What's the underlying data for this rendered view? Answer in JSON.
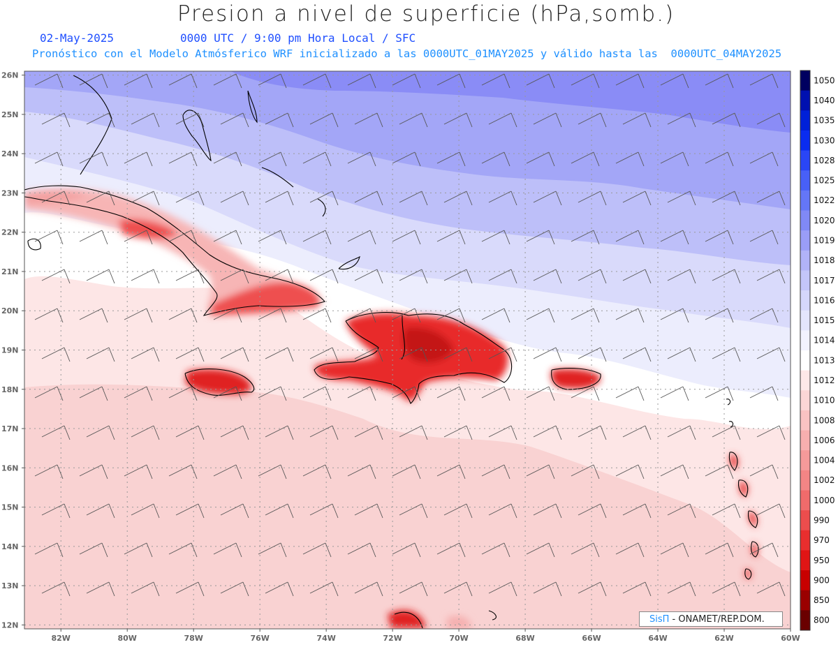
{
  "header": {
    "title": "Presion a nivel de superficie (hPa,somb.)",
    "date": "02-May-2025",
    "valid_time": "0000 UTC / 9:00 pm Hora Local / SFC",
    "forecast_info": "Pronóstico con el Modelo Atmósferico WRF inicializado a las 0000UTC_01MAY2025 y válido hasta las  0000UTC_04MAY2025"
  },
  "map": {
    "lat_labels": [
      "26N",
      "25N",
      "24N",
      "23N",
      "22N",
      "21N",
      "20N",
      "19N",
      "18N",
      "17N",
      "16N",
      "15N",
      "14N",
      "13N",
      "12N"
    ],
    "lon_labels": [
      "82W",
      "80W",
      "78W",
      "76W",
      "74W",
      "72W",
      "70W",
      "68W",
      "66W",
      "64W",
      "62W",
      "60W"
    ],
    "bands": [
      {
        "level": "1018",
        "color": "#8a8cf6"
      },
      {
        "level": "1017",
        "color": "#a3a6f7"
      },
      {
        "level": "1016",
        "color": "#bdbff9"
      },
      {
        "level": "1015",
        "color": "#d9dafb"
      },
      {
        "level": "1014",
        "color": "#ecedfd"
      },
      {
        "level": "1013",
        "color": "#ffffff"
      },
      {
        "level": "1012",
        "color": "#fde6e6"
      },
      {
        "level": "1010",
        "color": "#f9d2d2"
      }
    ]
  },
  "colorbar": {
    "levels": [
      "1050",
      "1040",
      "1035",
      "1030",
      "1028",
      "1025",
      "1022",
      "1020",
      "1019",
      "1018",
      "1017",
      "1016",
      "1015",
      "1014",
      "1013",
      "1012",
      "1010",
      "1008",
      "1006",
      "1004",
      "1002",
      "1000",
      "990",
      "970",
      "950",
      "900",
      "850",
      "800"
    ],
    "colors": [
      "#000060",
      "#0010b0",
      "#0020d8",
      "#0a2cf0",
      "#2a46f6",
      "#4860f7",
      "#6476f7",
      "#8089f6",
      "#9a9df7",
      "#b1b3f8",
      "#c4c6f9",
      "#d5d7fb",
      "#e4e5fc",
      "#f2f2fe",
      "#ffffff",
      "#fde8e8",
      "#fbd6d6",
      "#f9c3c3",
      "#f7afaf",
      "#f59a9a",
      "#f38585",
      "#f06b6b",
      "#ec4d4d",
      "#e82e2e",
      "#e01515",
      "#c80000",
      "#9a0000",
      "#6a0000"
    ]
  },
  "credit": {
    "brand": "SisΠ",
    "text": " - ONAMET/REP.DOM."
  }
}
